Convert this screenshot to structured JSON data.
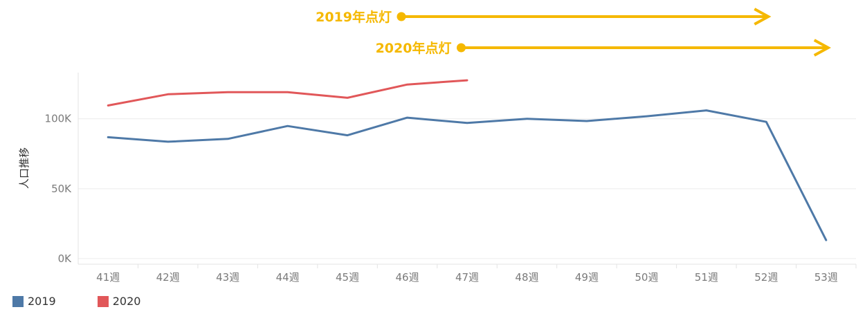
{
  "chart_data": {
    "type": "line",
    "categories": [
      "41週",
      "42週",
      "43週",
      "44週",
      "45週",
      "46週",
      "47週",
      "48週",
      "49週",
      "50週",
      "51週",
      "52週",
      "53週"
    ],
    "series": [
      {
        "name": "2019",
        "color": "#4e79a7",
        "values": [
          86800,
          83600,
          85600,
          94800,
          88200,
          100800,
          97000,
          100000,
          98400,
          101800,
          106000,
          97800,
          13200
        ]
      },
      {
        "name": "2020",
        "color": "#e15759",
        "values": [
          109500,
          117500,
          119000,
          119000,
          115000,
          124500,
          127500,
          null,
          null,
          null,
          null,
          null,
          null
        ]
      }
    ],
    "ylabel": "人口推移",
    "yticks": [
      {
        "value": 0,
        "label": "0K"
      },
      {
        "value": 50000,
        "label": "50K"
      },
      {
        "value": 100000,
        "label": "100K"
      }
    ],
    "ylim": [
      -4000,
      133000
    ],
    "grid": true,
    "legend_position": "bottom-left",
    "annotations": [
      {
        "text": "2019年点灯",
        "start_category": "47週",
        "end_category": "52週",
        "color": "#f5b800"
      },
      {
        "text": "2020年点灯",
        "start_category": "48週",
        "end_category": "53週",
        "color": "#f5b800"
      }
    ]
  },
  "legend": [
    {
      "label": "2019",
      "color": "#4e79a7"
    },
    {
      "label": "2020",
      "color": "#e15759"
    }
  ]
}
